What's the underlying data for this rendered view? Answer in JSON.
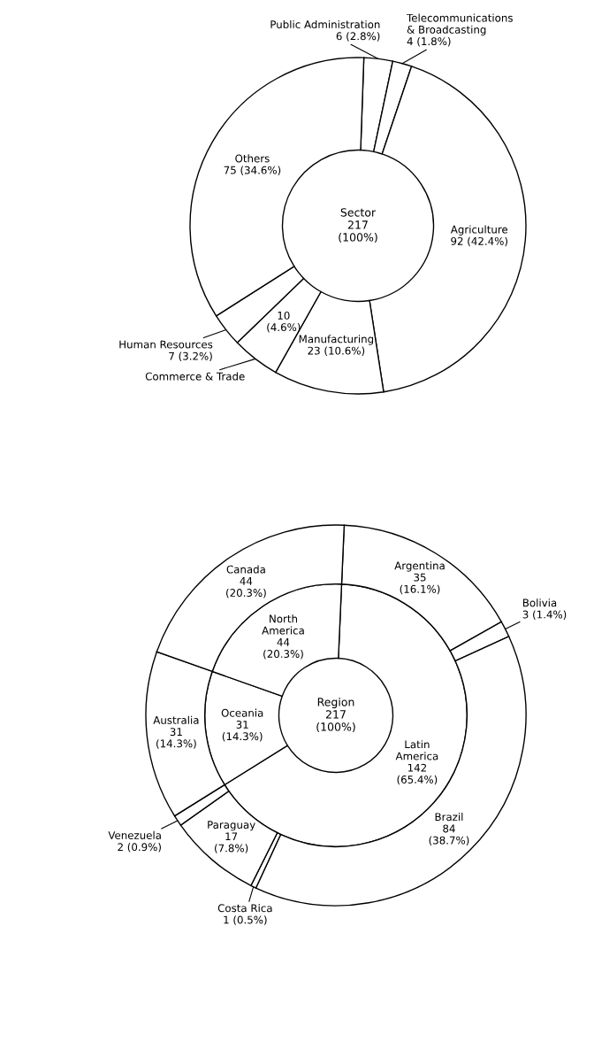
{
  "chart_data": [
    {
      "type": "donut",
      "title": "Sector",
      "subtitle": "217\n(100%)",
      "categories": [
        "Public Administration",
        "Telecommunications\n& Broadcasting",
        "Agriculture",
        "Manufacturing",
        "Commerce & Trade",
        "Human Resources",
        "Others"
      ],
      "values": [
        6,
        4,
        92,
        23,
        10,
        7,
        75
      ],
      "value_labels": [
        "6 (2.8%)",
        "4 (1.8%)",
        "92 (42.4%)",
        "23 (10.6%)",
        "10\n(4.6%)",
        "7 (3.2%)",
        "75 (34.6%)"
      ],
      "colors": [
        "#ffffff",
        "#ffffff",
        "#ffffff",
        "#ffffff",
        "#ffffff",
        "#ffffff",
        "#ffffff"
      ]
    },
    {
      "type": "other",
      "title": "Region",
      "subtitle": "217\n(100%)",
      "categories": [
        "Latin\nAmerica",
        "Oceania",
        "North\nAmerica",
        "Argentina",
        "Bolivia",
        "Brazil",
        "Costa Rica",
        "Paraguay",
        "Venezuela",
        "Australia",
        "Canada"
      ],
      "colors": [
        "#ffffff",
        "#ffffff",
        "#ffffff",
        "#ffffff",
        "#ffffff",
        "#ffffff",
        "#ffffff",
        "#ffffff",
        "#ffffff",
        "#ffffff",
        "#ffffff"
      ],
      "series": [
        {
          "values": [
            142,
            31,
            44,
            null,
            null,
            null,
            null,
            null,
            null,
            null,
            null
          ],
          "value_labels": [
            "142\n(65.4%)",
            "31\n(14.3%)",
            "44\n(20.3%)",
            null,
            null,
            null,
            null,
            null,
            null,
            null,
            null
          ]
        },
        {
          "values": [
            null,
            null,
            null,
            35,
            3,
            84,
            1,
            17,
            2,
            31,
            44
          ],
          "value_labels": [
            null,
            null,
            null,
            "35\n(16.1%)",
            "3 (1.4%)",
            "84\n(38.7%)",
            "1 (0.5%)",
            "17\n(7.8%)",
            "2 (0.9%)",
            "31\n(14.3%)",
            "44\n(20.3%)"
          ]
        }
      ]
    }
  ]
}
